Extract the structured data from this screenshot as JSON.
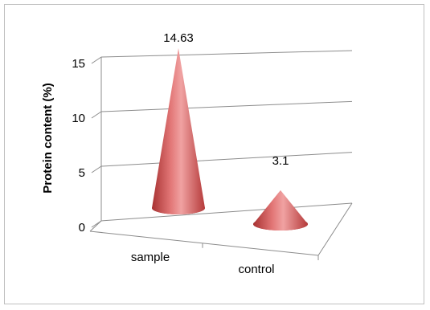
{
  "chart_data": {
    "type": "bar",
    "shape": "cone",
    "three_d": true,
    "categories": [
      "sample",
      "control"
    ],
    "values": [
      14.63,
      3.1
    ],
    "data_labels": [
      "14.63",
      "3.1"
    ],
    "ylabel": "Protein content (%)",
    "ylim": [
      0,
      15
    ],
    "yticks": [
      0,
      5,
      10,
      15
    ],
    "grid": true,
    "legend": "none",
    "colors": {
      "cone_dark": "#9b2d2d",
      "cone_mid": "#e07070",
      "cone_light": "#f0a8a8",
      "grid": "#8c8c8c"
    }
  }
}
